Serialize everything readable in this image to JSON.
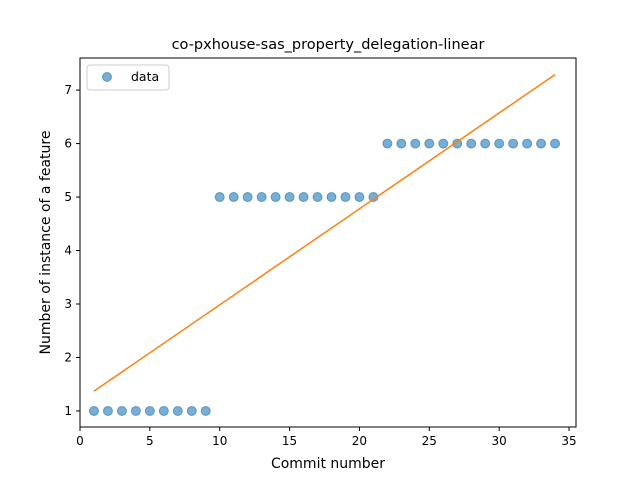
{
  "chart_data": {
    "type": "scatter",
    "title": "co-pxhouse-sas_property_delegation-linear",
    "xlabel": "Commit number",
    "ylabel": "Number of instance of a feature",
    "xlim": [
      0,
      35.5
    ],
    "ylim": [
      0.7,
      7.6
    ],
    "xticks": [
      0,
      5,
      10,
      15,
      20,
      25,
      30,
      35
    ],
    "yticks": [
      1,
      2,
      3,
      4,
      5,
      6,
      7
    ],
    "grid": false,
    "legend_position": "upper-left",
    "series": [
      {
        "name": "data",
        "kind": "scatter",
        "color": "#1f77b4",
        "x": [
          1,
          2,
          3,
          4,
          5,
          6,
          7,
          8,
          9,
          10,
          11,
          12,
          13,
          14,
          15,
          16,
          17,
          18,
          19,
          20,
          21,
          22,
          23,
          24,
          25,
          26,
          27,
          28,
          29,
          30,
          31,
          32,
          33,
          34
        ],
        "y": [
          1,
          1,
          1,
          1,
          1,
          1,
          1,
          1,
          1,
          5,
          5,
          5,
          5,
          5,
          5,
          5,
          5,
          5,
          5,
          5,
          5,
          6,
          6,
          6,
          6,
          6,
          6,
          6,
          6,
          6,
          6,
          6,
          6,
          6
        ]
      },
      {
        "kind": "line",
        "color": "#ff7f0e",
        "x": [
          1,
          34
        ],
        "y": [
          1.37,
          7.29
        ]
      }
    ]
  }
}
